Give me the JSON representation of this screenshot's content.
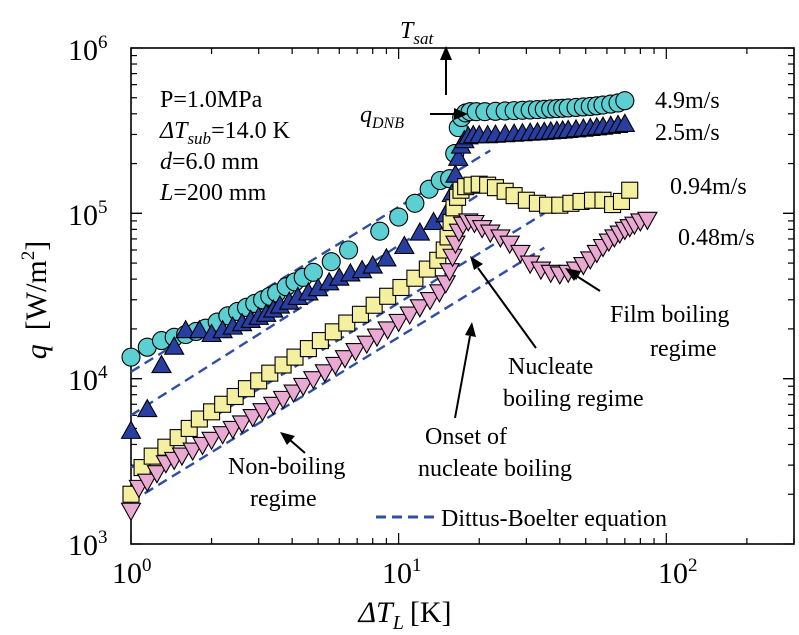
{
  "chart_data": {
    "type": "scatter",
    "title": "",
    "xlabel": {
      "symbol": "ΔT",
      "sub": "L",
      "unit": "[K]"
    },
    "ylabel": {
      "symbol": "q",
      "unit": "[W/m",
      "unit_sup": "2",
      "unit_end": "]"
    },
    "x_scale": "log",
    "y_scale": "log",
    "xlim": [
      1,
      300
    ],
    "ylim": [
      1000,
      1000000
    ],
    "x_ticks": [
      {
        "value": 1,
        "base": "10",
        "exp": "0"
      },
      {
        "value": 10,
        "base": "10",
        "exp": "1"
      },
      {
        "value": 100,
        "base": "10",
        "exp": "2"
      }
    ],
    "y_ticks": [
      {
        "value": 1000,
        "base": "10",
        "exp": "3"
      },
      {
        "value": 10000,
        "base": "10",
        "exp": "4"
      },
      {
        "value": 100000,
        "base": "10",
        "exp": "5"
      },
      {
        "value": 1000000,
        "base": "10",
        "exp": "6"
      }
    ],
    "grid": false,
    "conditions": [
      {
        "text": "P=1.0MPa"
      },
      {
        "sym": "ΔT",
        "sub": "sub",
        "text": "=14.0 K"
      },
      {
        "sym": "d",
        "text": "=6.0 mm"
      },
      {
        "sym": "L",
        "text": "=200 mm"
      }
    ],
    "series": [
      {
        "name": "4.9m/s",
        "marker": "circle",
        "color": "#5ccfd3",
        "x": [
          1,
          1.15,
          1.3,
          1.45,
          1.6,
          1.75,
          1.9,
          2.1,
          2.3,
          2.5,
          2.7,
          2.9,
          3.1,
          3.3,
          3.5,
          3.8,
          4.1,
          4.4,
          4.8,
          5.6,
          6.5,
          8.5,
          10,
          11.5,
          13,
          14.3,
          15.5,
          16.2,
          16.7,
          17.2,
          17.8,
          18.5,
          19.5,
          21,
          23,
          25,
          27,
          29,
          31,
          33,
          35,
          37,
          39,
          41,
          43,
          46,
          49,
          52,
          55,
          58,
          62,
          66,
          70
        ],
        "y": [
          13500,
          15500,
          17000,
          17800,
          18500,
          19300,
          20200,
          22000,
          24000,
          25500,
          27000,
          28500,
          30000,
          31500,
          33000,
          36000,
          38500,
          41000,
          44000,
          51000,
          60000,
          78000,
          95000,
          115000,
          140000,
          158000,
          162000,
          230000,
          330000,
          380000,
          405000,
          412000,
          412000,
          412000,
          414000,
          416000,
          418000,
          420000,
          422000,
          424000,
          426000,
          428000,
          430000,
          432000,
          434000,
          437000,
          440000,
          443000,
          447000,
          452000,
          458000,
          465000,
          480000
        ]
      },
      {
        "name": "2.5m/s",
        "marker": "triangle-up",
        "color": "#283ea0",
        "x": [
          1,
          1.15,
          1.3,
          1.45,
          1.6,
          1.8,
          2,
          2.2,
          2.4,
          2.6,
          2.8,
          3,
          3.2,
          3.4,
          3.6,
          3.9,
          4.2,
          4.6,
          5,
          5.5,
          6,
          6.6,
          7.3,
          8,
          9,
          10.5,
          12,
          13.5,
          15,
          15.8,
          16.3,
          16.7,
          17.1,
          17.6,
          18.2,
          19,
          20,
          21.5,
          23,
          25,
          27,
          29,
          31,
          33,
          35,
          37,
          39,
          41,
          43,
          46,
          49,
          52,
          55,
          58,
          62,
          66,
          70
        ],
        "y": [
          4800,
          6500,
          12000,
          15500,
          19500,
          19500,
          18500,
          19500,
          20500,
          21500,
          22500,
          23500,
          24500,
          26000,
          27500,
          29000,
          31000,
          33000,
          35000,
          38000,
          40500,
          43000,
          45000,
          48000,
          53000,
          63000,
          76000,
          88000,
          98000,
          130000,
          170000,
          215000,
          255000,
          275000,
          290000,
          295000,
          295000,
          295000,
          297000,
          299000,
          301000,
          303000,
          305000,
          307000,
          309000,
          311000,
          313000,
          315000,
          317000,
          320000,
          323000,
          326000,
          329000,
          332000,
          336000,
          340000,
          345000
        ]
      },
      {
        "name": "0.94m/s",
        "marker": "square",
        "color": "#f5f0a0",
        "x": [
          1,
          1.1,
          1.2,
          1.35,
          1.5,
          1.65,
          1.8,
          2,
          2.2,
          2.45,
          2.7,
          3,
          3.3,
          3.7,
          4.1,
          4.6,
          5.1,
          5.7,
          6.4,
          7.2,
          8.1,
          9.1,
          10.2,
          11.5,
          12.8,
          14,
          14.8,
          15.3,
          15.7,
          16.1,
          16.6,
          17.1,
          17.8,
          18.8,
          20,
          21.5,
          23,
          25,
          27,
          30,
          33,
          36,
          40,
          44,
          48,
          53,
          58,
          63,
          68,
          73
        ],
        "y": [
          2000,
          2900,
          3400,
          3850,
          4400,
          5000,
          5700,
          6300,
          7000,
          7800,
          8700,
          9700,
          10800,
          12100,
          13500,
          15200,
          17000,
          19200,
          21700,
          24500,
          27800,
          31500,
          35600,
          40500,
          46000,
          52000,
          60000,
          72000,
          88000,
          108000,
          125000,
          138000,
          145000,
          148000,
          150000,
          148000,
          143000,
          136000,
          128000,
          120000,
          115000,
          112000,
          112000,
          115000,
          118000,
          120000,
          120000,
          113000,
          118000,
          138000
        ]
      },
      {
        "name": "0.48m/s",
        "marker": "triangle-down",
        "color": "#e9a9d2",
        "x": [
          1,
          1.07,
          1.15,
          1.25,
          1.35,
          1.45,
          1.55,
          1.7,
          1.85,
          2,
          2.2,
          2.4,
          2.6,
          2.85,
          3.1,
          3.4,
          3.7,
          4.05,
          4.4,
          4.8,
          5.3,
          5.8,
          6.3,
          6.9,
          7.6,
          8.3,
          9.1,
          10,
          11,
          12,
          13.1,
          14.2,
          15,
          15.5,
          15.9,
          16.3,
          16.8,
          17.4,
          18.2,
          19.2,
          20.5,
          22,
          24,
          26,
          28.5,
          31,
          34,
          37,
          40,
          43,
          46,
          49,
          52,
          55,
          58,
          61,
          64,
          67,
          70,
          73,
          76,
          80,
          85
        ],
        "y": [
          1600,
          2200,
          2400,
          2700,
          3100,
          3250,
          3450,
          3700,
          4000,
          4300,
          4650,
          5000,
          5400,
          5900,
          6400,
          7000,
          7600,
          8300,
          9100,
          10000,
          11000,
          12200,
          13400,
          14800,
          16400,
          18100,
          20000,
          22200,
          24600,
          27200,
          30100,
          33500,
          38000,
          45000,
          55000,
          66000,
          78000,
          86000,
          90000,
          88000,
          82000,
          77000,
          72000,
          66000,
          58000,
          50000,
          46000,
          44000,
          43000,
          44000,
          46000,
          49000,
          53000,
          58000,
          63000,
          68000,
          72000,
          76000,
          80000,
          83000,
          86000,
          90000,
          92000
        ]
      }
    ],
    "curve_legend": {
      "name": "Dittus-Boelter equation",
      "color": "#2f4ea6",
      "style": "dashed"
    },
    "reference_curves": [
      {
        "x": [
          1,
          22
        ],
        "y": [
          11000,
          240000
        ]
      },
      {
        "x": [
          1,
          20
        ],
        "y": [
          6000,
          130000
        ]
      },
      {
        "x": [
          1,
          35
        ],
        "y": [
          2900,
          100000
        ]
      },
      {
        "x": [
          1,
          35
        ],
        "y": [
          1800,
          62000
        ]
      }
    ],
    "annotations": {
      "tsat": {
        "sym": "T",
        "sub": "sat"
      },
      "qdnb": {
        "sym": "q",
        "sub": "DNB"
      },
      "film": [
        "Film boiling",
        "regime"
      ],
      "nucleate": [
        "Nucleate",
        "boiling regime"
      ],
      "onset": [
        "Onset of",
        "nucleate boiling"
      ],
      "nonboiling": [
        "Non-boiling",
        "regime"
      ]
    }
  }
}
